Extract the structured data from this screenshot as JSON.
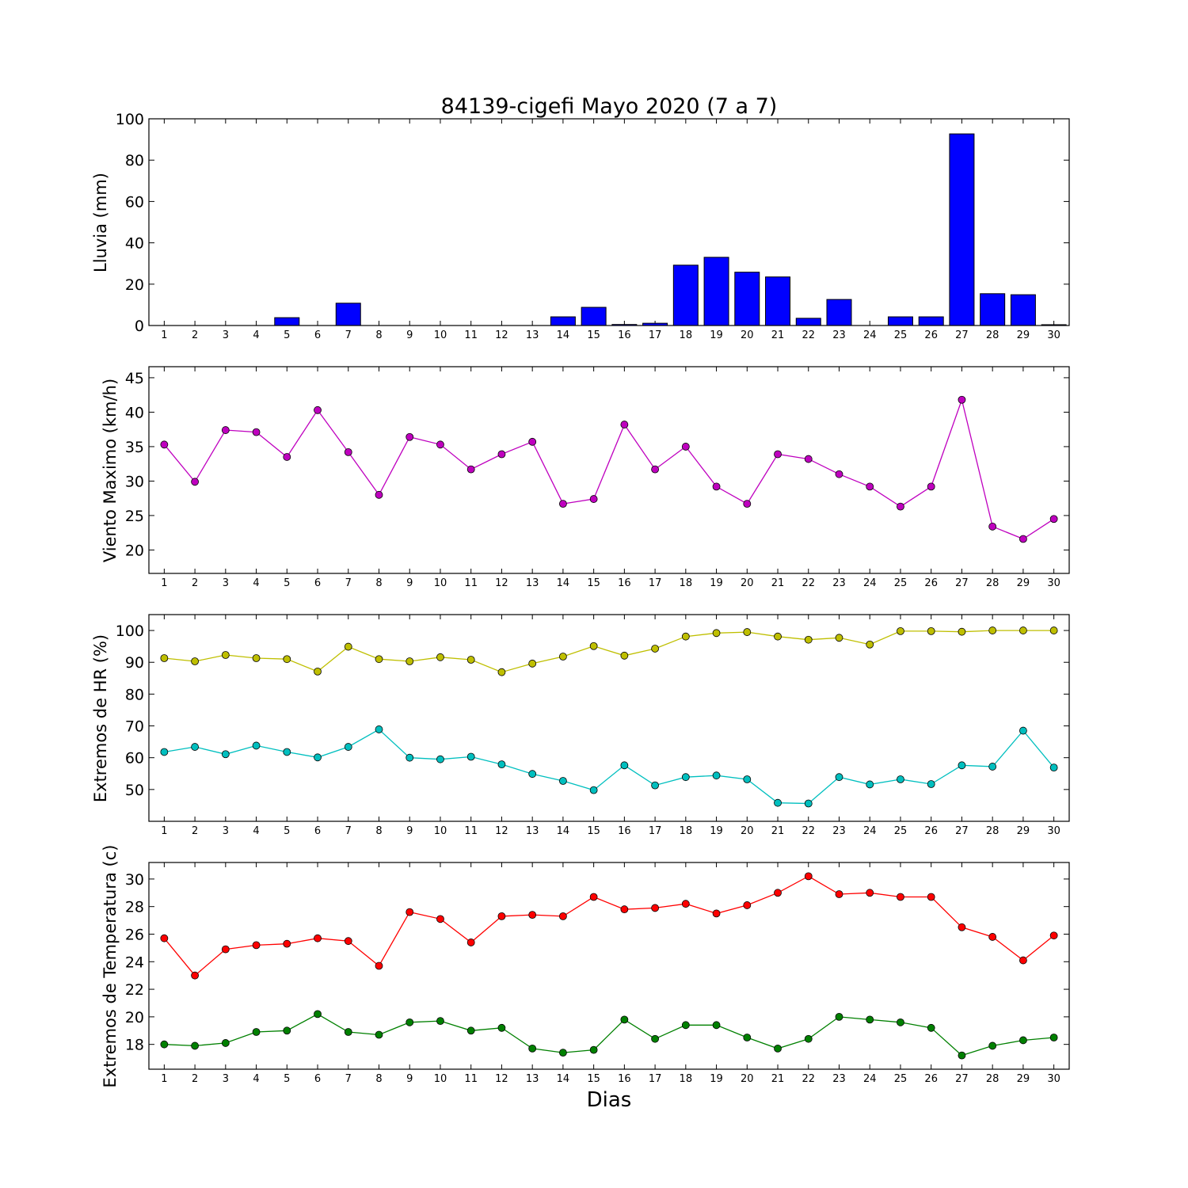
{
  "figure": {
    "title": "84139-cigefi Mayo 2020  (7 a 7)",
    "xlabel": "Dias"
  },
  "chart_data": [
    {
      "type": "bar",
      "ylabel": "Lluvia (mm)",
      "ylim": [
        0,
        100
      ],
      "yticks": [
        0,
        20,
        40,
        60,
        80,
        100
      ],
      "x": [
        1,
        2,
        3,
        4,
        5,
        6,
        7,
        8,
        9,
        10,
        11,
        12,
        13,
        14,
        15,
        16,
        17,
        18,
        19,
        20,
        21,
        22,
        23,
        24,
        25,
        26,
        27,
        28,
        29,
        30
      ],
      "series": [
        {
          "color": "#0000ff",
          "values": [
            0,
            0,
            0,
            0,
            3.8,
            0,
            10.8,
            0,
            0,
            0,
            0,
            0,
            0,
            4.2,
            8.8,
            0.5,
            1.1,
            29.2,
            33,
            25.8,
            23.5,
            3.5,
            12.6,
            0,
            4.2,
            4.2,
            92.7,
            15.4,
            14.9,
            0.4
          ]
        }
      ]
    },
    {
      "type": "line",
      "ylabel": "Viento Maximo (km/h)",
      "ylim": [
        16.6,
        46.6
      ],
      "yticks": [
        20,
        25,
        30,
        35,
        40,
        45
      ],
      "x": [
        1,
        2,
        3,
        4,
        5,
        6,
        7,
        8,
        9,
        10,
        11,
        12,
        13,
        14,
        15,
        16,
        17,
        18,
        19,
        20,
        21,
        22,
        23,
        24,
        25,
        26,
        27,
        28,
        29,
        30
      ],
      "series": [
        {
          "color": "#bf00bf",
          "values": [
            35.3,
            29.9,
            37.4,
            37.1,
            33.5,
            40.3,
            34.2,
            28,
            36.4,
            35.3,
            31.7,
            33.9,
            35.7,
            26.7,
            27.4,
            38.2,
            31.7,
            35,
            29.2,
            26.7,
            33.9,
            33.2,
            31,
            29.2,
            26.3,
            29.2,
            41.8,
            23.4,
            21.6,
            24.5
          ]
        }
      ]
    },
    {
      "type": "line",
      "ylabel": "Extremos de HR (%)",
      "ylim": [
        40,
        105
      ],
      "yticks": [
        50,
        60,
        70,
        80,
        90,
        100
      ],
      "x": [
        1,
        2,
        3,
        4,
        5,
        6,
        7,
        8,
        9,
        10,
        11,
        12,
        13,
        14,
        15,
        16,
        17,
        18,
        19,
        20,
        21,
        22,
        23,
        24,
        25,
        26,
        27,
        28,
        29,
        30
      ],
      "series": [
        {
          "color": "#bfbf00",
          "values": [
            91.3,
            90.3,
            92.3,
            91.3,
            91,
            87.1,
            94.9,
            91,
            90.3,
            91.6,
            90.8,
            86.9,
            89.6,
            91.8,
            95.1,
            92.1,
            94.3,
            98.1,
            99.2,
            99.5,
            98.1,
            97.1,
            97.7,
            95.6,
            99.8,
            99.8,
            99.6,
            100,
            100,
            100
          ]
        },
        {
          "color": "#00bfbf",
          "values": [
            61.8,
            63.4,
            61.1,
            63.8,
            61.8,
            60.1,
            63.4,
            68.9,
            60,
            59.5,
            60.3,
            57.9,
            54.9,
            52.7,
            49.8,
            57.6,
            51.3,
            53.9,
            54.4,
            53.2,
            45.8,
            45.6,
            53.9,
            51.6,
            53.2,
            51.7,
            57.6,
            57.2,
            68.5,
            56.9
          ]
        }
      ]
    },
    {
      "type": "line",
      "ylabel": "Extremos de Temperatura (c)",
      "ylim": [
        16.2,
        31.2
      ],
      "yticks": [
        18,
        20,
        22,
        24,
        26,
        28,
        30
      ],
      "x": [
        1,
        2,
        3,
        4,
        5,
        6,
        7,
        8,
        9,
        10,
        11,
        12,
        13,
        14,
        15,
        16,
        17,
        18,
        19,
        20,
        21,
        22,
        23,
        24,
        25,
        26,
        27,
        28,
        29,
        30
      ],
      "series": [
        {
          "color": "#ff0000",
          "values": [
            25.7,
            23,
            24.9,
            25.2,
            25.3,
            25.7,
            25.5,
            23.7,
            27.6,
            27.1,
            25.4,
            27.3,
            27.4,
            27.3,
            28.7,
            27.8,
            27.9,
            28.2,
            27.5,
            28.1,
            29,
            30.2,
            28.9,
            29,
            28.7,
            28.7,
            26.5,
            25.8,
            24.1,
            25.9
          ]
        },
        {
          "color": "#008000",
          "values": [
            18,
            17.9,
            18.1,
            18.9,
            19,
            20.2,
            18.9,
            18.7,
            19.6,
            19.7,
            19,
            19.2,
            17.7,
            17.4,
            17.6,
            19.8,
            18.4,
            19.4,
            19.4,
            18.5,
            17.7,
            18.4,
            20,
            19.8,
            19.6,
            19.2,
            17.2,
            17.9,
            18.3,
            18.5
          ]
        }
      ]
    }
  ]
}
